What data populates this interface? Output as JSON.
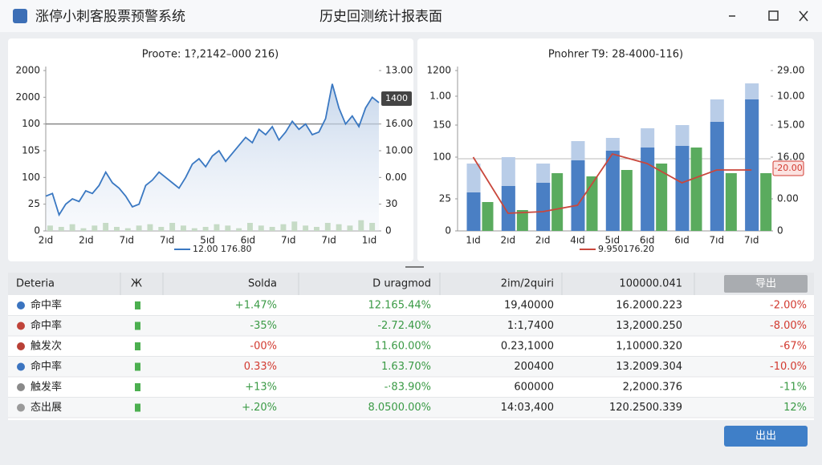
{
  "header": {
    "app_title": "涨停小刺客股票预警系统",
    "page_title": "历史回测统计报表面"
  },
  "chart_data": [
    {
      "type": "line",
      "title": "Prooте: 1?,2142–000 216)",
      "xlabels": [
        "2ıd",
        "2ıd",
        "7ıd",
        "7ıd",
        "5ıd",
        "6ıd",
        "7ıd",
        "7ıd",
        "1ıd"
      ],
      "series": [
        {
          "name": "12.00 176.80",
          "color": "#3a78c2",
          "values": [
            1.3,
            1.4,
            0.6,
            1.0,
            1.2,
            1.1,
            1.5,
            1.4,
            1.7,
            2.2,
            1.8,
            1.6,
            1.3,
            0.9,
            1.0,
            1.7,
            1.9,
            2.2,
            2.0,
            1.8,
            1.6,
            2.0,
            2.5,
            2.7,
            2.4,
            2.8,
            3.0,
            2.6,
            2.9,
            3.2,
            3.5,
            3.3,
            3.8,
            3.6,
            3.9,
            3.4,
            3.7,
            4.1,
            3.8,
            4.0,
            3.6,
            3.7,
            4.2,
            5.5,
            4.6,
            4.0,
            4.3,
            3.9,
            4.6,
            5.0,
            4.8
          ]
        }
      ],
      "volume": {
        "color": "#b7d3b0",
        "values": [
          0.2,
          0.15,
          0.25,
          0.1,
          0.2,
          0.3,
          0.15,
          0.1,
          0.2,
          0.25,
          0.15,
          0.3,
          0.2,
          0.1,
          0.15,
          0.25,
          0.2,
          0.1,
          0.3,
          0.2,
          0.15,
          0.25,
          0.35,
          0.2,
          0.15,
          0.3,
          0.25,
          0.2,
          0.4,
          0.3
        ]
      },
      "reference_line": 4,
      "ylim": [
        0,
        6
      ],
      "yticks": [
        {
          "value": 6,
          "label": "2000"
        },
        {
          "value": 5,
          "label": "2000"
        },
        {
          "value": 4,
          "label": "100"
        },
        {
          "value": 3,
          "label": "105"
        },
        {
          "value": 2,
          "label": "100"
        },
        {
          "value": 1,
          "label": "25"
        },
        0
      ],
      "y2lim": [
        0,
        6
      ],
      "y2ticks": [
        {
          "value": 6,
          "label": "13.00"
        },
        {
          "value": 4,
          "label": "16.00"
        },
        {
          "value": 3,
          "label": "10.00"
        },
        {
          "value": 2,
          "label": "0.00"
        },
        {
          "value": 1,
          "label": "30"
        },
        0
      ],
      "tag": {
        "value": 4.95,
        "label": "1400"
      }
    },
    {
      "type": "bar",
      "title": "Pnohrer T9: 28-4000-116)",
      "categories": [
        "1ıd",
        "2ıd",
        "2ıd",
        "4ıd",
        "5ıd",
        "6ıd",
        "6ıd",
        "7ıd",
        "7ıd"
      ],
      "series": [
        {
          "color": "#b9cde8",
          "values": [
            2.1,
            2.3,
            2.1,
            2.8,
            2.9,
            3.2,
            3.3,
            4.1,
            4.6
          ]
        },
        {
          "color": "#4a7fc4",
          "values": [
            1.2,
            1.4,
            1.5,
            2.2,
            2.5,
            2.6,
            2.65,
            3.4,
            4.1
          ]
        },
        {
          "color": "#5aab5e",
          "values": [
            0.9,
            0.65,
            1.8,
            1.7,
            1.9,
            2.1,
            2.6,
            1.8,
            1.8
          ]
        },
        {
          "name": "9.950176.20",
          "color": "#c9473c",
          "values": [
            2.3,
            0.55,
            0.6,
            0.8,
            2.4,
            2.1,
            1.5,
            1.9,
            1.9
          ]
        }
      ],
      "reference_line": 2.25,
      "ylim": [
        0,
        5
      ],
      "yticks": [
        {
          "value": 5,
          "label": "1200"
        },
        {
          "value": 4.2,
          "label": "1.00"
        },
        {
          "value": 3.3,
          "label": "150"
        },
        {
          "value": 2.3,
          "label": "100"
        },
        {
          "value": 1,
          "label": "25"
        },
        0
      ],
      "y2lim": [
        0,
        5
      ],
      "y2ticks": [
        {
          "value": 5,
          "label": "29.00"
        },
        {
          "value": 4.2,
          "label": "10.00"
        },
        {
          "value": 3.3,
          "label": "15.00"
        },
        {
          "value": 2.3,
          "label": "16.00"
        },
        {
          "value": 1,
          "label": "0.00"
        },
        0
      ],
      "tag": {
        "value": 1.95,
        "label": "-20.00"
      }
    }
  ],
  "table": {
    "columns": [
      "Deteria",
      "Ж",
      "Solda",
      "D uragmod",
      "2im/2quiri",
      "100000.041"
    ],
    "export_button": "导出",
    "rows": [
      {
        "dot": "#3b74c0",
        "cells": [
          "命中率",
          "+1.47%",
          "12.165.44%",
          "19,40000",
          "16.2000.223",
          "-2.00%"
        ],
        "colors": [
          "#3a9a45",
          "#3a9a45",
          "#222",
          "#222",
          "#d23a30"
        ]
      },
      {
        "dot": "#c0443a",
        "cells": [
          "命中率",
          "-35%",
          "-2.72.40%",
          "1:1,7400",
          "13,2000.250",
          "-8.00%"
        ],
        "colors": [
          "#3a9a45",
          "#3a9a45",
          "#222",
          "#222",
          "#d23a30"
        ]
      },
      {
        "dot": "#b84036",
        "cells": [
          "触发次",
          "-00%",
          "11.60.00%",
          "0.23,1000",
          "1,10000.320",
          "-67%"
        ],
        "colors": [
          "#d23a30",
          "#3a9a45",
          "#222",
          "#222",
          "#d23a30"
        ]
      },
      {
        "dot": "#3b74c0",
        "cells": [
          "命中率",
          "0.33%",
          "1.63.70%",
          "200400",
          "13.2009.304",
          "-10.0%"
        ],
        "colors": [
          "#d23a30",
          "#3a9a45",
          "#222",
          "#222",
          "#d23a30"
        ]
      },
      {
        "dot": "#8a8a8a",
        "cells": [
          "触发率",
          "+13%",
          "-·83.90%",
          "600000",
          "2,2000.376",
          "-11%"
        ],
        "colors": [
          "#3a9a45",
          "#3a9a45",
          "#222",
          "#222",
          "#3a9a45"
        ]
      },
      {
        "dot": "#9a9a9a",
        "cells": [
          "态出展",
          "+.20%",
          "8.0500.00%",
          "14:03,400",
          "120.2500.339",
          "12%"
        ],
        "colors": [
          "#3a9a45",
          "#3a9a45",
          "#222",
          "#222",
          "#3a9a45"
        ]
      }
    ]
  },
  "footer_button": "出出"
}
